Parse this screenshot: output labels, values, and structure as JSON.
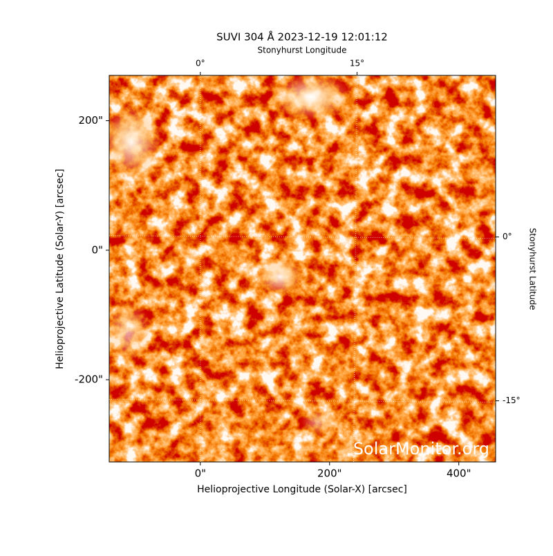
{
  "chart_data": {
    "type": "image",
    "title": "SUVI 304 Å 2023-12-19 12:01:12",
    "xlabel": "Helioprojective Longitude (Solar-X) [arcsec]",
    "ylabel": "Helioprojective Latitude (Solar-Y) [arcsec]",
    "top_label": "Stonyhurst Longitude",
    "right_label": "Stonyhurst Latitude",
    "xlim": [
      -141,
      457
    ],
    "ylim": [
      -327,
      270
    ],
    "xticks": [
      {
        "value": 0,
        "label": "0\""
      },
      {
        "value": 200,
        "label": "200\""
      },
      {
        "value": 400,
        "label": "400\""
      }
    ],
    "yticks": [
      {
        "value": -200,
        "label": "-200\""
      },
      {
        "value": 0,
        "label": "0\""
      },
      {
        "value": 200,
        "label": "200\""
      }
    ],
    "top_ticks": [
      {
        "value": 0,
        "label": "0°"
      },
      {
        "value": 15,
        "label": "15°"
      }
    ],
    "right_ticks": [
      {
        "value": 0,
        "label": "0°"
      },
      {
        "value": -15,
        "label": "-15°"
      }
    ],
    "grid": true,
    "watermark": "SolarMonitor.org"
  }
}
